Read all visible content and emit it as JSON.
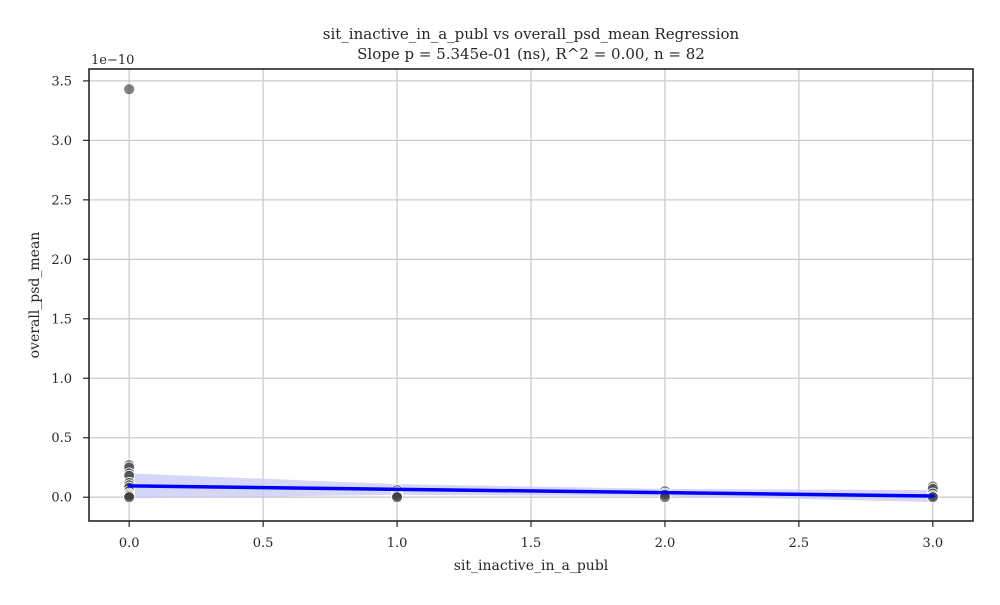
{
  "chart_data": {
    "type": "scatter",
    "title": "sit_inactive_in_a_publ vs overall_psd_mean Regression",
    "subtitle": "Slope p = 5.345e-01 (ns), R^2 = 0.00, n = 82",
    "xlabel": "sit_inactive_in_a_publ",
    "ylabel": "overall_psd_mean",
    "y_offset_label": "1e−10",
    "xlim": [
      -0.15,
      3.15
    ],
    "ylim": [
      -0.2,
      3.6
    ],
    "x_ticks": [
      0.0,
      0.5,
      1.0,
      1.5,
      2.0,
      2.5,
      3.0
    ],
    "x_tick_labels": [
      "0.0",
      "0.5",
      "1.0",
      "1.5",
      "2.0",
      "2.5",
      "3.0"
    ],
    "y_ticks": [
      0.0,
      0.5,
      1.0,
      1.5,
      2.0,
      2.5,
      3.0,
      3.5
    ],
    "y_tick_labels": [
      "0.0",
      "0.5",
      "1.0",
      "1.5",
      "2.0",
      "2.5",
      "3.0",
      "3.5"
    ],
    "grid": true,
    "points": [
      {
        "x": 0,
        "y": 3.43
      },
      {
        "x": 0,
        "y": 0.27
      },
      {
        "x": 0,
        "y": 0.25
      },
      {
        "x": 0,
        "y": 0.2
      },
      {
        "x": 0,
        "y": 0.18
      },
      {
        "x": 0,
        "y": 0.12
      },
      {
        "x": 0,
        "y": 0.1
      },
      {
        "x": 0,
        "y": 0.08
      },
      {
        "x": 0,
        "y": 0.05
      },
      {
        "x": 0,
        "y": 0.03
      },
      {
        "x": 0,
        "y": 0.02
      },
      {
        "x": 0,
        "y": 0.01
      },
      {
        "x": 0,
        "y": 0.0
      },
      {
        "x": 1,
        "y": 0.06
      },
      {
        "x": 1,
        "y": 0.04
      },
      {
        "x": 1,
        "y": 0.02
      },
      {
        "x": 1,
        "y": 0.01
      },
      {
        "x": 1,
        "y": 0.0
      },
      {
        "x": 2,
        "y": 0.05
      },
      {
        "x": 2,
        "y": 0.03
      },
      {
        "x": 2,
        "y": 0.02
      },
      {
        "x": 2,
        "y": 0.0
      },
      {
        "x": 3,
        "y": 0.09
      },
      {
        "x": 3,
        "y": 0.07
      },
      {
        "x": 3,
        "y": 0.03
      },
      {
        "x": 3,
        "y": 0.01
      },
      {
        "x": 3,
        "y": 0.0
      }
    ],
    "regression_line": {
      "x": [
        0,
        3
      ],
      "y": [
        0.095,
        0.01
      ]
    },
    "confidence_band": {
      "x": [
        0,
        1,
        2,
        3
      ],
      "upper": [
        0.2,
        0.11,
        0.07,
        0.06
      ],
      "lower": [
        -0.01,
        0.02,
        0.01,
        -0.04
      ]
    },
    "colors": {
      "points": "#404040",
      "line": "#0000ff",
      "band": "#c8c8f5",
      "grid": "#cccccc",
      "axes": "#262626"
    }
  }
}
